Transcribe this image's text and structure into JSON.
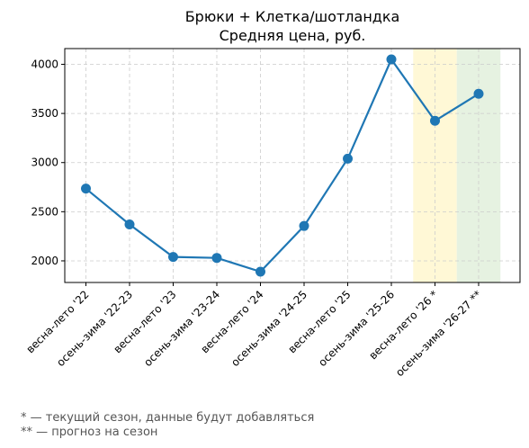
{
  "chart_data": {
    "type": "line",
    "title": "Брюки + Клетка/шотландка",
    "subtitle": "Средняя цена, руб.",
    "categories": [
      "весна-лето '22",
      "осень-зима '22-23",
      "весна-лето '23",
      "осень-зима '23-24",
      "весна-лето '24",
      "осень-зима '24-25",
      "весна-лето '25",
      "осень-зима '25-26",
      "весна-лето '26 *",
      "осень-зима '26-27 **"
    ],
    "values": [
      2735,
      2370,
      2040,
      2030,
      1890,
      2355,
      3040,
      4050,
      3425,
      3700
    ],
    "yticks": [
      2000,
      2500,
      3000,
      3500,
      4000
    ],
    "ylim": [
      1780,
      4160
    ],
    "grid": true,
    "line_color": "#1f77b4",
    "highlights": [
      {
        "category": "весна-лето '26 *",
        "color": "#fff8d6"
      },
      {
        "category": "осень-зима '26-27 **",
        "color": "#e6f2e1"
      }
    ]
  },
  "footnotes": [
    "* — текущий сезон, данные будут добавляться",
    "** — прогноз на сезон"
  ]
}
